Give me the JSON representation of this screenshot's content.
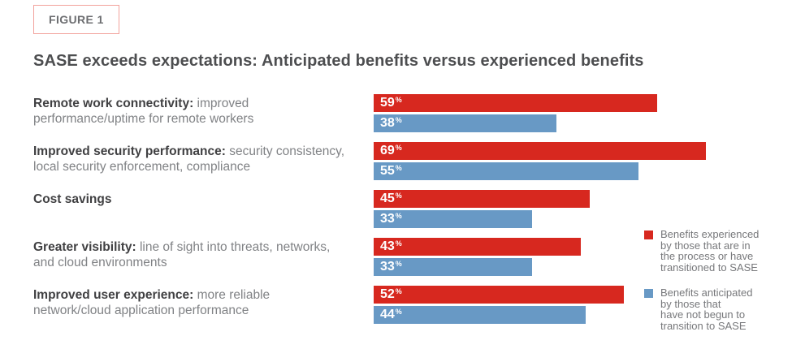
{
  "figure_tag": "FIGURE 1",
  "title": "SASE exceeds expectations: Anticipated benefits versus experienced benefits",
  "colors": {
    "experienced": "#d7281f",
    "anticipated": "#6899c5",
    "figure_tag_border": "#f2a29c",
    "title_text": "#4d4e50",
    "label_bold": "#404042",
    "label_regular": "#808285",
    "legend_text": "#77787b"
  },
  "chart_data": {
    "type": "bar",
    "orientation": "horizontal",
    "title": "SASE exceeds expectations: Anticipated benefits versus experienced benefits",
    "unit": "%",
    "xlim": [
      0,
      100
    ],
    "grid": false,
    "value_labels": "inside-start",
    "legend_position": "right-bottom",
    "categories": [
      {
        "bold": "Remote work connectivity:",
        "rest": " improved",
        "line2": "performance/uptime for remote workers"
      },
      {
        "bold": "Improved security performance:",
        "rest": " security consistency,",
        "line2": "local security enforcement, compliance"
      },
      {
        "bold": "Cost savings",
        "rest": "",
        "line2": ""
      },
      {
        "bold": "Greater visibility:",
        "rest": " line of sight into threats, networks,",
        "line2": "and cloud environments"
      },
      {
        "bold": "Improved user experience:",
        "rest": " more reliable",
        "line2": "network/cloud application performance"
      }
    ],
    "series": [
      {
        "name": "Benefits experienced by those that are in the process or have transitioned to SASE",
        "color": "#d7281f",
        "values": [
          59,
          69,
          45,
          43,
          52
        ]
      },
      {
        "name": "Benefits anticipated by those that have not begun to transition to SASE",
        "color": "#6899c5",
        "values": [
          38,
          55,
          33,
          33,
          44
        ]
      }
    ]
  },
  "legend": [
    {
      "color": "#d7281f",
      "lines": [
        "Benefits experienced",
        "by those that are in",
        "the process or have",
        "transitioned to SASE"
      ]
    },
    {
      "color": "#6899c5",
      "lines": [
        "Benefits anticipated",
        "by those that",
        "have not begun to",
        "transition to SASE"
      ]
    }
  ]
}
